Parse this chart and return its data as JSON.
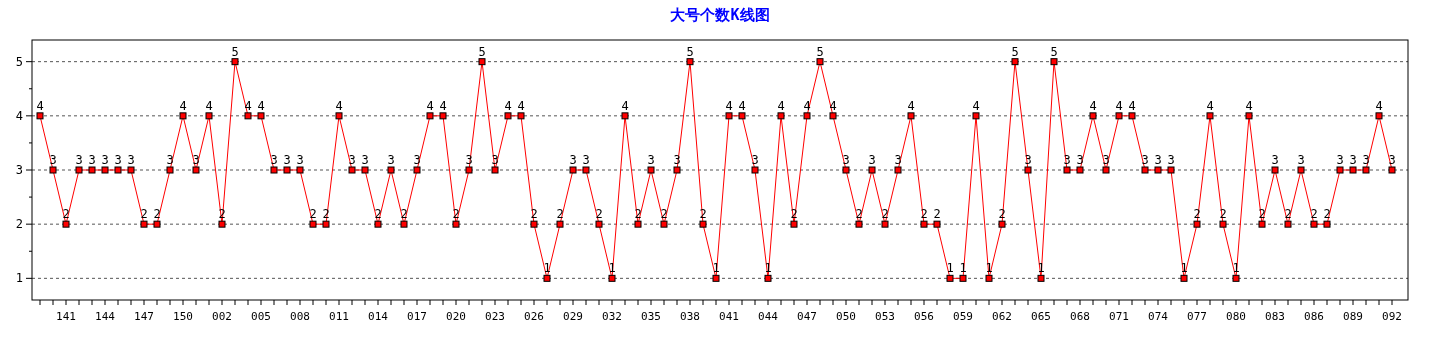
{
  "chart_data": {
    "type": "line",
    "title": "大号个数K线图",
    "categories": [
      null,
      null,
      "141",
      null,
      null,
      "144",
      null,
      null,
      "147",
      null,
      null,
      "150",
      null,
      null,
      "002",
      null,
      null,
      "005",
      null,
      null,
      "008",
      null,
      null,
      "011",
      null,
      null,
      "014",
      null,
      null,
      "017",
      null,
      null,
      "020",
      null,
      null,
      "023",
      null,
      null,
      "026",
      null,
      null,
      "029",
      null,
      null,
      "032",
      null,
      null,
      "035",
      null,
      null,
      "038",
      null,
      null,
      "041",
      null,
      null,
      "044",
      null,
      null,
      "047",
      null,
      null,
      "050",
      null,
      null,
      "053",
      null,
      null,
      "056",
      null,
      null,
      "059",
      null,
      null,
      "062",
      null,
      null,
      "065",
      null,
      null,
      "068",
      null,
      null,
      "071",
      null,
      null,
      "074",
      null,
      null,
      "077",
      null,
      null,
      "080",
      null,
      null,
      "083",
      null,
      null,
      "086",
      null,
      null,
      "089",
      null,
      null,
      "092"
    ],
    "series": [
      {
        "color": "#ff0000",
        "values": [
          4,
          3,
          2,
          3,
          3,
          3,
          3,
          3,
          2,
          2,
          3,
          4,
          3,
          4,
          2,
          5,
          4,
          4,
          3,
          3,
          3,
          2,
          2,
          4,
          3,
          3,
          2,
          3,
          2,
          3,
          4,
          4,
          2,
          3,
          5,
          3,
          4,
          4,
          2,
          1,
          2,
          3,
          3,
          2,
          1,
          4,
          2,
          3,
          2,
          3,
          5,
          2,
          1,
          4,
          4,
          3,
          1,
          4,
          2,
          4,
          5,
          4,
          3,
          2,
          3,
          2,
          3,
          4,
          2,
          2,
          1,
          1,
          4,
          1,
          2,
          5,
          3,
          1,
          5,
          3,
          3,
          4,
          3,
          4,
          4,
          3,
          3,
          3,
          1,
          2,
          4,
          2,
          1,
          4,
          2,
          3,
          2,
          3,
          2,
          2,
          3,
          3,
          3,
          4,
          3
        ]
      }
    ],
    "ylim": [
      0.6,
      5.4
    ],
    "yticks": [
      1,
      {
        "value": 1.5,
        "label": null
      },
      2,
      {
        "value": 2.5,
        "label": null
      },
      3,
      {
        "value": 3.5,
        "label": null
      },
      4,
      {
        "value": 4.5,
        "label": null
      },
      5
    ],
    "grid": "y",
    "marker": "square",
    "data_labels": true
  }
}
